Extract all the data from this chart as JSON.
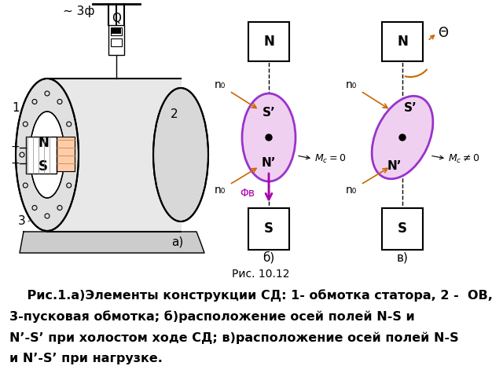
{
  "background_color": "#ffffff",
  "fig_width": 6.4,
  "fig_height": 4.8,
  "dpi": 100,
  "caption_lines": [
    "    Рис.1.а)Элементы конструкции СД: 1- обмотка статора, 2 -  ОВ,",
    "3-пусковая обмотка; б)расположение осей полей N-S и",
    "N’-S’ при холостом ходе СД; в)расположение осей полей N-S",
    "и N’-S’ при нагрузке."
  ],
  "caption_fontsize": 11.5,
  "sub_label_a": "а)",
  "sub_label_b": "б)",
  "sub_label_v": "в)",
  "ris_label": "Рис. 10.12",
  "label_3f": "~ 3ф",
  "label_Q": "Q",
  "label_N": "N",
  "label_S": "S",
  "label_1": "1",
  "label_2": "2",
  "label_3": "3"
}
